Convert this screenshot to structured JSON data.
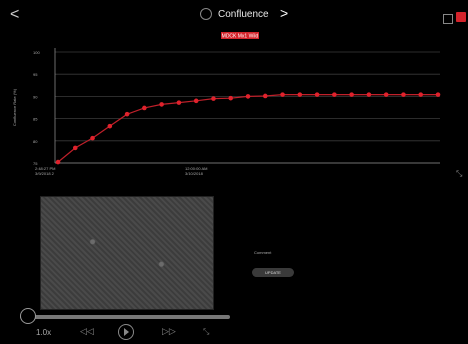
{
  "header": {
    "back_label": "<",
    "title": "Confluence",
    "next_label": ">"
  },
  "chart_data": {
    "type": "line",
    "title": "MDCK Mx1 Wild",
    "ylabel": "Confluence Rate (%)",
    "ylim": [
      75,
      100
    ],
    "yticks": [
      "100",
      "95",
      "90",
      "85",
      "80",
      "75"
    ],
    "xtick_labels": [
      {
        "line1": "2:48:27 PM",
        "line2": "3/9/2018 2"
      },
      {
        "line1": "12:00:00 AM",
        "line2": "3/10/2018"
      }
    ],
    "series": [
      {
        "values": [
          75.2,
          78.4,
          80.6,
          83.3,
          86.0,
          87.4,
          88.2,
          88.6,
          89.0,
          89.5,
          89.6,
          90.0,
          90.1,
          90.4,
          90.4,
          90.4,
          90.4,
          90.4,
          90.4,
          90.4,
          90.4,
          90.4,
          90.4
        ]
      }
    ],
    "grid": true,
    "colors": {
      "line": "#c0202a",
      "marker": "#e0222c",
      "grid": "#3a3a3a",
      "axis": "#888888",
      "title_bg": "#d4232b"
    }
  },
  "comment_label": "Comment",
  "update_label": "UPDATE",
  "player": {
    "speed": "1.0x",
    "rewind_label": "◁◁",
    "forward_label": "▷▷"
  }
}
